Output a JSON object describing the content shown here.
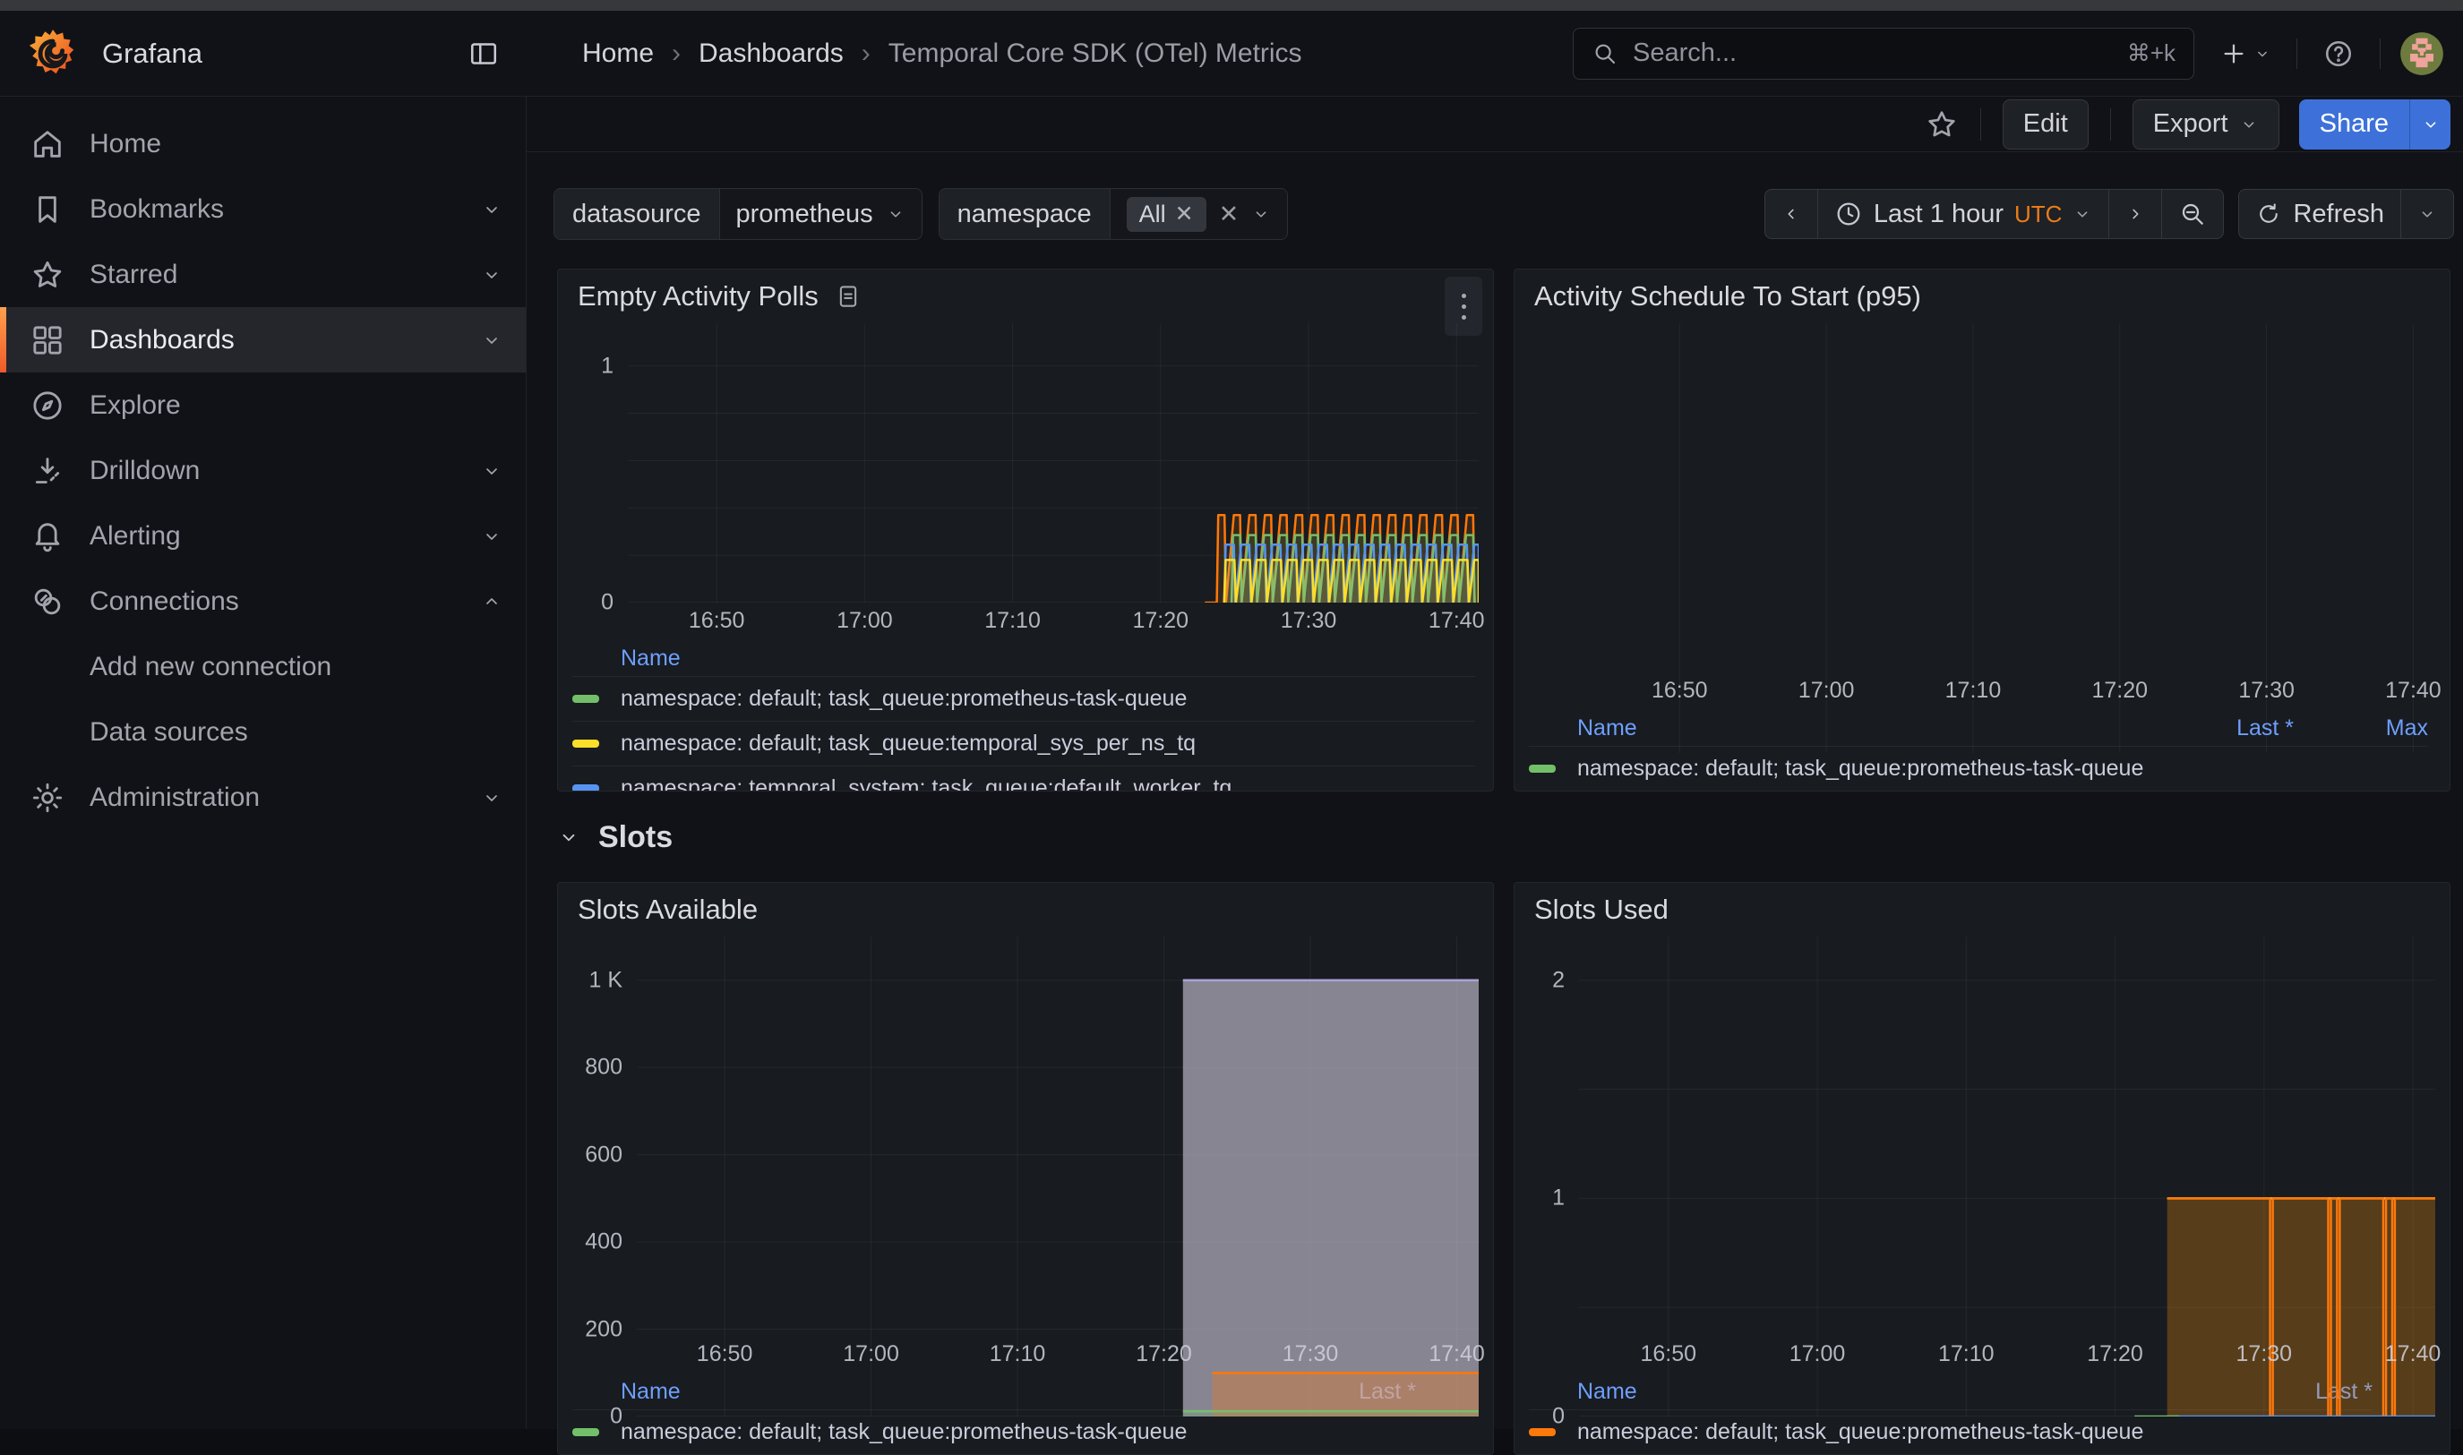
{
  "header": {
    "brand": "Grafana",
    "breadcrumbs": [
      "Home",
      "Dashboards",
      "Temporal Core SDK (OTel) Metrics"
    ],
    "search": {
      "placeholder": "Search...",
      "shortcut": "⌘+k"
    }
  },
  "sidebar": {
    "items": [
      {
        "label": "Home"
      },
      {
        "label": "Bookmarks"
      },
      {
        "label": "Starred"
      },
      {
        "label": "Dashboards"
      },
      {
        "label": "Explore"
      },
      {
        "label": "Drilldown"
      },
      {
        "label": "Alerting"
      },
      {
        "label": "Connections"
      },
      {
        "label": "Add new connection"
      },
      {
        "label": "Data sources"
      },
      {
        "label": "Administration"
      }
    ]
  },
  "toolbar": {
    "edit_label": "Edit",
    "export_label": "Export",
    "share_label": "Share"
  },
  "filters": {
    "datasource": {
      "label": "datasource",
      "value": "prometheus"
    },
    "namespace": {
      "label": "namespace",
      "chip": "All"
    }
  },
  "timebar": {
    "range_label": "Last 1 hour",
    "timezone": "UTC",
    "refresh_label": "Refresh"
  },
  "section_row": {
    "title": "Slots"
  },
  "colors": {
    "accent_orange": "#eb7b18",
    "share_blue": "#3d71d9",
    "legend_link": "#6e9fff",
    "series_green": "#73bf69",
    "series_yellow": "#fade2a",
    "series_blue": "#5794f2",
    "series_orange": "#ff780a",
    "panel_bg": "#181b1f",
    "canvas_bg": "#111217"
  },
  "panels": [
    {
      "title": "Empty Activity Polls",
      "description_icon": true,
      "menu_kebab": true,
      "chart": {
        "type": "line",
        "x_unit": "minutes after 16:00 UTC",
        "xlim": [
          44,
          101.5
        ],
        "x_ticks": [
          {
            "v": 50,
            "label": "16:50"
          },
          {
            "v": 60,
            "label": "17:00"
          },
          {
            "v": 70,
            "label": "17:10"
          },
          {
            "v": 80,
            "label": "17:20"
          },
          {
            "v": 90,
            "label": "17:30"
          },
          {
            "v": 100,
            "label": "17:40"
          }
        ],
        "ylim": [
          0,
          1.18
        ],
        "y_ticks": [
          {
            "v": 1,
            "label": "1"
          },
          {
            "v": 0,
            "label": "0"
          }
        ],
        "hgrid": [
          0.2,
          0.4,
          0.6,
          0.8,
          1
        ],
        "vgrid": true,
        "series": [
          {
            "kind": "squarewave",
            "color": "#ff780a",
            "fill_opacity": 0.13,
            "lead_from": 83.0,
            "from": 83.8,
            "to": 101.5,
            "period": 1.05,
            "duty": 0.5,
            "high": 0.37
          },
          {
            "name": "namespace: default; task_queue:prometheus-task-queue",
            "kind": "squarewave",
            "color": "#73bf69",
            "fill_opacity": 0.12,
            "from": 84.8,
            "to": 101.5,
            "period": 1.05,
            "duty": 0.55,
            "high": 0.285
          },
          {
            "name": "namespace: temporal_system; task_queue:default_worker_tq",
            "kind": "squarewave",
            "color": "#5794f2",
            "fill_opacity": 0.12,
            "from": 84.3,
            "to": 101.5,
            "period": 1.05,
            "duty": 0.62,
            "high": 0.245
          },
          {
            "name": "namespace: default; task_queue:temporal_sys_per_ns_tq",
            "kind": "squarewave",
            "color": "#fade2a",
            "fill_opacity": 0.15,
            "from": 84.3,
            "to": 101.5,
            "period": 1.05,
            "duty": 0.66,
            "high": 0.18
          }
        ]
      },
      "legend": {
        "columns": [
          "Name"
        ],
        "entries": [
          {
            "color": "#73bf69",
            "label": "namespace: default; task_queue:prometheus-task-queue"
          },
          {
            "color": "#fade2a",
            "label": "namespace: default; task_queue:temporal_sys_per_ns_tq"
          },
          {
            "color": "#5794f2",
            "label": "namespace: temporal_system; task_queue:default_worker_tq"
          }
        ]
      }
    },
    {
      "title": "Activity Schedule To Start (p95)",
      "chart": {
        "type": "line",
        "xlim": [
          44,
          101.5
        ],
        "x_ticks": [
          {
            "v": 50,
            "label": "16:50"
          },
          {
            "v": 60,
            "label": "17:00"
          },
          {
            "v": 70,
            "label": "17:10"
          },
          {
            "v": 80,
            "label": "17:20"
          },
          {
            "v": 90,
            "label": "17:30"
          },
          {
            "v": 100,
            "label": "17:40"
          }
        ],
        "ylim": [
          0,
          1
        ],
        "y_ticks": [],
        "hgrid": [],
        "vgrid": true,
        "series": []
      },
      "legend": {
        "columns": [
          "Name",
          "Last *",
          "Max"
        ],
        "entries": [
          {
            "color": "#73bf69",
            "label": "namespace: default; task_queue:prometheus-task-queue",
            "values": [
              "",
              ""
            ]
          }
        ]
      }
    },
    {
      "title": "Slots Available",
      "chart": {
        "type": "area",
        "xlim": [
          44,
          101.5
        ],
        "x_ticks": [
          {
            "v": 50,
            "label": "16:50"
          },
          {
            "v": 60,
            "label": "17:00"
          },
          {
            "v": 70,
            "label": "17:10"
          },
          {
            "v": 80,
            "label": "17:20"
          },
          {
            "v": 90,
            "label": "17:30"
          },
          {
            "v": 100,
            "label": "17:40"
          }
        ],
        "ylim": [
          0,
          1100
        ],
        "y_ticks": [
          {
            "v": 1000,
            "label": "1 K"
          },
          {
            "v": 800,
            "label": "800"
          },
          {
            "v": 600,
            "label": "600"
          },
          {
            "v": 400,
            "label": "400"
          },
          {
            "v": 200,
            "label": "200"
          },
          {
            "v": 0,
            "label": "0"
          }
        ],
        "hgrid": [
          200,
          400,
          600,
          800,
          1000
        ],
        "vgrid": true,
        "series": [
          {
            "kind": "steps",
            "color": "#aaa3d9",
            "fill": "#cbc6d8",
            "fill_opacity": 0.62,
            "points": [
              [
                81.3,
                1000
              ],
              [
                101.5,
                1000
              ]
            ]
          },
          {
            "kind": "steps",
            "color": "#ff780a",
            "fill": "#ff780a",
            "fill_opacity": 0.3,
            "points": [
              [
                83.3,
                100
              ],
              [
                101.5,
                100
              ]
            ]
          },
          {
            "kind": "steps",
            "color": "#73bf69",
            "fill": "#73bf69",
            "fill_opacity": 0.15,
            "points": [
              [
                81.3,
                12
              ],
              [
                101.5,
                12
              ]
            ]
          }
        ]
      },
      "legend": {
        "columns": [
          "Name",
          "Last *"
        ],
        "entries": [
          {
            "color": "#73bf69",
            "label": "namespace: default; task_queue:prometheus-task-queue",
            "values": [
              ""
            ]
          }
        ]
      }
    },
    {
      "title": "Slots Used",
      "chart": {
        "type": "line",
        "xlim": [
          44,
          101.5
        ],
        "x_ticks": [
          {
            "v": 50,
            "label": "16:50"
          },
          {
            "v": 60,
            "label": "17:00"
          },
          {
            "v": 70,
            "label": "17:10"
          },
          {
            "v": 80,
            "label": "17:20"
          },
          {
            "v": 90,
            "label": "17:30"
          },
          {
            "v": 100,
            "label": "17:40"
          }
        ],
        "ylim": [
          0,
          2.2
        ],
        "y_ticks": [
          {
            "v": 2,
            "label": "2"
          },
          {
            "v": 1,
            "label": "1"
          },
          {
            "v": 0,
            "label": "0"
          }
        ],
        "hgrid": [
          0.5,
          1,
          1.5,
          2
        ],
        "vgrid": true,
        "series": [
          {
            "kind": "steps",
            "color": "#fade2a",
            "fill": "#fade2a",
            "fill_opacity": 0.1,
            "points": [
              [
                83.5,
                1
              ],
              [
                101.5,
                1
              ]
            ]
          },
          {
            "kind": "steps",
            "color": "#ff780a",
            "fill": "#ff780a",
            "fill_opacity": 0.2,
            "points": [
              [
                83.5,
                1
              ],
              [
                90.41,
                1
              ],
              [
                90.41,
                0
              ],
              [
                90.59,
                0
              ],
              [
                90.59,
                1
              ],
              [
                94.31,
                1
              ],
              [
                94.31,
                0
              ],
              [
                94.49,
                0
              ],
              [
                94.49,
                1
              ],
              [
                94.91,
                1
              ],
              [
                94.91,
                0
              ],
              [
                95.09,
                0
              ],
              [
                95.09,
                1
              ],
              [
                98.01,
                1
              ],
              [
                98.01,
                0
              ],
              [
                98.19,
                0
              ],
              [
                98.19,
                1
              ],
              [
                98.61,
                1
              ],
              [
                98.61,
                0
              ],
              [
                98.79,
                0
              ],
              [
                98.79,
                1
              ],
              [
                101.5,
                1
              ]
            ]
          },
          {
            "kind": "steps",
            "color": "#5794f2",
            "points": [
              [
                83.5,
                0
              ],
              [
                101.5,
                0
              ]
            ]
          },
          {
            "kind": "steps",
            "color": "#73bf69",
            "points": [
              [
                81.3,
                0
              ],
              [
                84.3,
                0
              ]
            ]
          }
        ]
      },
      "legend": {
        "columns": [
          "Name",
          "Last *"
        ],
        "entries": [
          {
            "color": "#ff780a",
            "label": "namespace: default; task_queue:prometheus-task-queue",
            "values": [
              ""
            ]
          }
        ]
      }
    }
  ]
}
